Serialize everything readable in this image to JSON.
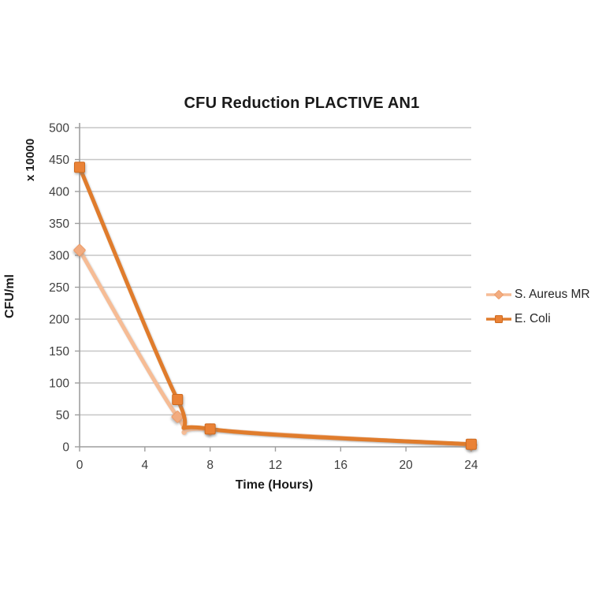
{
  "chart_data": {
    "type": "line",
    "title": "CFU Reduction PLACTIVE AN1",
    "xlabel": "Time (Hours)",
    "ylabel": "CFU/ml",
    "y_multiplier_label": "x 10000",
    "xlim": [
      0,
      24
    ],
    "ylim": [
      0,
      500
    ],
    "x_ticks": [
      0,
      4,
      8,
      12,
      16,
      20,
      24
    ],
    "y_ticks": [
      0,
      50,
      100,
      150,
      200,
      250,
      300,
      350,
      400,
      450,
      500
    ],
    "grid": "horizontal-only",
    "legend_position": "right",
    "series": [
      {
        "name": "S. Aureus MR",
        "marker": "diamond",
        "line_color": "#F6BC95",
        "marker_fill": "#F2AC80",
        "marker_stroke": "#EC9C69",
        "x": [
          0,
          6,
          8,
          24
        ],
        "values": [
          308,
          47,
          27,
          3
        ]
      },
      {
        "name": "E. Coli",
        "marker": "square",
        "line_color": "#E07C2C",
        "marker_fill": "#EA8236",
        "marker_stroke": "#CE6A1F",
        "x": [
          0,
          6,
          8,
          24
        ],
        "values": [
          438,
          74,
          28,
          4
        ]
      }
    ],
    "colors": {
      "background": "#FFFFFF",
      "gridline": "#C6C6C6",
      "axis": "#9E9E9E",
      "tick_text": "#3F3F3F",
      "title_text": "#1A1A1A"
    }
  }
}
